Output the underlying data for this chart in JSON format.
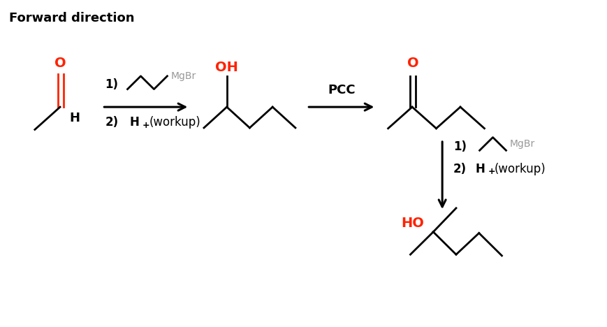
{
  "title": "Forward direction",
  "title_fontsize": 13,
  "title_fontweight": "bold",
  "background_color": "#ffffff",
  "black": "#000000",
  "red": "#ff2200",
  "gray": "#999999",
  "figsize": [
    8.7,
    4.68
  ],
  "dpi": 100,
  "xlim": [
    0,
    10
  ],
  "ylim": [
    0,
    5.4
  ]
}
